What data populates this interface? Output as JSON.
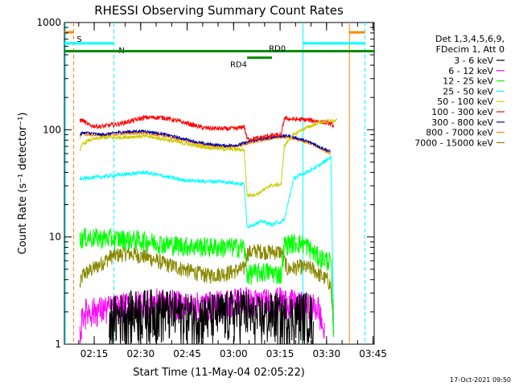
{
  "chart_data": {
    "type": "line",
    "title": "RHESSI Observing Summary Count Rates",
    "xlabel": "Start Time (11-May-04 02:05:22)",
    "ylabel": "Count Rate (s⁻¹ detector⁻¹)",
    "x_unit": "minutes after 02:05:22",
    "xlim": [
      0,
      100
    ],
    "ylim": [
      1,
      1000
    ],
    "y_scale": "log",
    "x_ticks": [
      {
        "label": "02:15",
        "value": 9.63
      },
      {
        "label": "02:30",
        "value": 24.63
      },
      {
        "label": "02:45",
        "value": 39.63
      },
      {
        "label": "03:00",
        "value": 54.63
      },
      {
        "label": "03:15",
        "value": 69.63
      },
      {
        "label": "03:30",
        "value": 84.63
      },
      {
        "label": "03:45",
        "value": 99.63
      }
    ],
    "y_ticks": [
      {
        "label": "1",
        "value": 1
      },
      {
        "label": "10",
        "value": 10
      },
      {
        "label": "100",
        "value": 100
      },
      {
        "label": "1000",
        "value": 1000
      }
    ],
    "legend": {
      "position": "right",
      "header": [
        "Det 1,3,4,5,6,9,",
        "FDecim 1, Att 0"
      ]
    },
    "series": [
      {
        "name": "3 - 6 keV",
        "color": "#000000",
        "noise": 0.55,
        "x": [
          14.5,
          15,
          20,
          26,
          33,
          40,
          46,
          52,
          56,
          58,
          60,
          62,
          65,
          68,
          71,
          74,
          77,
          78,
          79,
          80,
          80.5
        ],
        "y": [
          1.2,
          1.8,
          2.0,
          2.1,
          2.1,
          1.9,
          1.9,
          2.0,
          2.1,
          2.2,
          1.9,
          1.8,
          1.9,
          2.0,
          1.8,
          1.9,
          2.0,
          2.0,
          2.0,
          1.8,
          1.2
        ]
      },
      {
        "name": "6 - 12 keV",
        "color": "#ff00ff",
        "noise": 0.32,
        "x": [
          5,
          6,
          20,
          26,
          33,
          40,
          50,
          58,
          60,
          65,
          70,
          75,
          78,
          82,
          84
        ],
        "y": [
          1.2,
          2.0,
          2.3,
          2.5,
          2.5,
          2.3,
          2.4,
          2.7,
          2.5,
          2.5,
          2.6,
          2.4,
          2.3,
          2.2,
          1.2
        ]
      },
      {
        "name": "12 - 25 keV",
        "color": "#00ff00",
        "noise": 0.22,
        "x": [
          5,
          6,
          20,
          26,
          33,
          40,
          50,
          58,
          59,
          65,
          70,
          71,
          72,
          75,
          78,
          82,
          86,
          87
        ],
        "y": [
          9.3,
          10.0,
          9.6,
          9.3,
          8.6,
          8.3,
          8.1,
          8.1,
          4.5,
          4.8,
          4.5,
          8.5,
          8.7,
          8.9,
          8.5,
          6.5,
          6.0,
          1.2
        ]
      },
      {
        "name": "25 - 50 keV",
        "color": "#00ffff",
        "noise": 0.04,
        "x": [
          5,
          10,
          18,
          26,
          32,
          38,
          45,
          50,
          55,
          58,
          59,
          64,
          67,
          70,
          71,
          74,
          78,
          82,
          85,
          86,
          87
        ],
        "y": [
          35,
          36,
          38,
          40,
          37,
          34,
          33,
          33,
          32,
          31,
          12.5,
          14,
          13,
          14,
          14.5,
          35,
          40,
          46,
          53,
          56,
          1.2
        ]
      },
      {
        "name": "50 - 100 keV",
        "color": "#cccc00",
        "noise": 0.04,
        "x": [
          5,
          6,
          8,
          12,
          18,
          26,
          32,
          38,
          45,
          52,
          58,
          59,
          62,
          65,
          66,
          70,
          71,
          73,
          76,
          80,
          83,
          86,
          87,
          88
        ],
        "y": [
          64,
          74,
          80,
          84,
          85,
          87,
          82,
          75,
          69,
          66,
          65,
          24.5,
          25,
          28,
          30,
          31,
          70,
          85,
          98,
          110,
          118,
          122,
          120,
          122
        ]
      },
      {
        "name": "100 - 300 keV",
        "color": "#ff0000",
        "noise": 0.05,
        "x": [
          5,
          6,
          8,
          12,
          18,
          26,
          32,
          38,
          45,
          52,
          56,
          58,
          59,
          62,
          66,
          70,
          71,
          74,
          78,
          82,
          85,
          87
        ],
        "y": [
          123,
          122,
          110,
          107,
          114,
          130,
          130,
          118,
          104,
          102,
          103,
          108,
          82,
          83,
          88,
          89,
          128,
          125,
          124,
          120,
          116,
          110
        ]
      },
      {
        "name": "300 - 800 keV",
        "color": "#0000aa",
        "noise": 0.03,
        "x": [
          5,
          6,
          8,
          12,
          18,
          26,
          32,
          38,
          45,
          52,
          56,
          58,
          60,
          64,
          68,
          72,
          76,
          80,
          84,
          86
        ],
        "y": [
          90,
          94,
          93,
          90,
          95,
          97,
          91,
          83,
          74,
          71,
          72,
          75,
          78,
          82,
          86,
          88,
          82,
          75,
          66,
          62
        ]
      },
      {
        "name": "800 - 7000 keV",
        "color": "#ff8800",
        "noise": 0.03,
        "x": [
          5,
          6,
          8,
          12,
          18,
          26,
          32,
          38,
          45,
          52,
          56,
          58,
          60,
          64,
          68,
          72,
          76,
          80,
          84,
          86
        ],
        "y": [
          85,
          92,
          90,
          88,
          92,
          93,
          88,
          80,
          72,
          69,
          70,
          73,
          76,
          80,
          84,
          86,
          80,
          73,
          64,
          60
        ]
      },
      {
        "name": "7000 - 15000 keV",
        "color": "#888800",
        "noise": 0.17,
        "x": [
          5,
          6,
          10,
          15,
          20,
          26,
          33,
          40,
          46,
          52,
          58,
          59,
          62,
          66,
          70,
          72,
          76,
          80,
          83,
          85,
          86,
          87
        ],
        "y": [
          3.5,
          4.5,
          5.2,
          6.6,
          7.1,
          6.6,
          5.6,
          4.9,
          4.4,
          4.6,
          5.1,
          7.1,
          7.5,
          7.3,
          7.3,
          5.0,
          5.3,
          5.1,
          4.3,
          4.0,
          3.5,
          1.2
        ]
      }
    ],
    "annotations": [
      {
        "label": "S",
        "kind": "solid",
        "color": "#ff8800",
        "segments": [
          [
            0,
            3
          ]
        ],
        "y": 810,
        "text_x": 4
      },
      {
        "label": "",
        "kind": "solid",
        "color": "#ff8800",
        "segments": [
          [
            92,
            97
          ]
        ],
        "y": 810,
        "text_x": 93
      },
      {
        "label": "N",
        "kind": "solid",
        "color": "#00ffff",
        "segments": [
          [
            0,
            16
          ],
          [
            77,
            97
          ]
        ],
        "y": 640,
        "text_x": 17.5
      },
      {
        "label": "",
        "kind": "solid",
        "color": "#008800",
        "segments": [
          [
            0,
            100
          ]
        ],
        "y": 540,
        "text_x": 0
      },
      {
        "label": "RD0",
        "kind": "text",
        "color": "#008800",
        "segments": [],
        "y": 580,
        "text_x": 66
      },
      {
        "label": "RD4",
        "kind": "solid",
        "color": "#008800",
        "segments": [
          [
            59,
            67
          ]
        ],
        "y": 470,
        "text_x": 53.5
      }
    ],
    "vertical_markers": [
      {
        "x": 0.3,
        "color": "#00ffff",
        "style": "solid"
      },
      {
        "x": 3,
        "color": "#ff8800",
        "style": "dashed"
      },
      {
        "x": 16,
        "color": "#00ffff",
        "style": "dashed"
      },
      {
        "x": 77,
        "color": "#00ffff",
        "style": "solid"
      },
      {
        "x": 92,
        "color": "#ff8800",
        "style": "solid"
      },
      {
        "x": 97,
        "color": "#00ffff",
        "style": "dashed"
      }
    ]
  },
  "timestamp": "17-Oct-2021 09:50"
}
